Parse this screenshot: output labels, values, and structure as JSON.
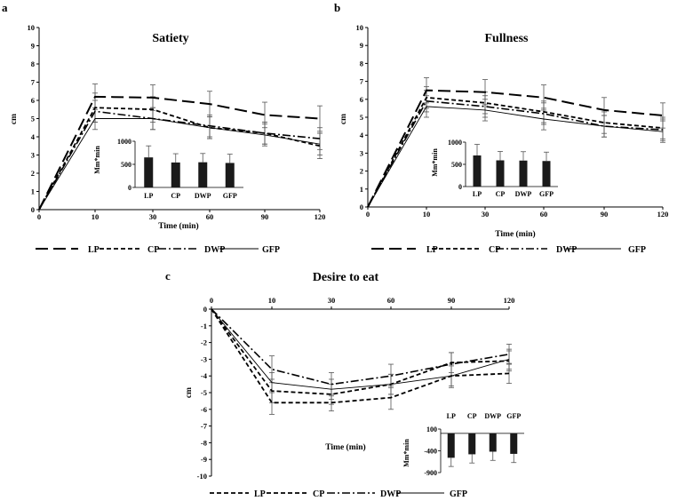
{
  "chart_data": [
    {
      "panel": "a",
      "type": "line",
      "title": "Satiety",
      "xlabel": "Time (min)",
      "ylabel": "cm",
      "x": [
        0,
        10,
        30,
        60,
        90,
        120
      ],
      "x_ticks": [
        0,
        10,
        30,
        60,
        90,
        120
      ],
      "ylim": [
        0,
        10
      ],
      "y_ticks": [
        0,
        1,
        2,
        3,
        4,
        5,
        6,
        7,
        8,
        9,
        10
      ],
      "series": [
        {
          "name": "LP",
          "style": "long-dash",
          "values": [
            0,
            6.2,
            6.15,
            5.8,
            5.2,
            5.0
          ],
          "errors": [
            0,
            0.7,
            0.7,
            0.7,
            0.7,
            0.7
          ]
        },
        {
          "name": "CP",
          "style": "short-dash",
          "values": [
            0,
            5.6,
            5.5,
            4.5,
            4.2,
            3.5
          ],
          "errors": [
            0,
            0.8,
            0.7,
            0.6,
            0.6,
            0.7
          ]
        },
        {
          "name": "DWP",
          "style": "dash-dot",
          "values": [
            0,
            5.4,
            5.0,
            4.6,
            4.2,
            3.9
          ],
          "errors": [
            0,
            0.6,
            0.6,
            0.6,
            0.6,
            0.6
          ]
        },
        {
          "name": "GFP",
          "style": "solid",
          "values": [
            0,
            5.0,
            5.0,
            4.5,
            4.1,
            3.6
          ],
          "errors": [
            0,
            0.6,
            0.6,
            0.6,
            0.6,
            0.6
          ]
        }
      ],
      "inset": {
        "type": "bar",
        "ylabel": "Mm*min",
        "categories": [
          "LP",
          "CP",
          "DWP",
          "GFP"
        ],
        "values": [
          650,
          540,
          545,
          530
        ],
        "errors": [
          250,
          190,
          190,
          190
        ],
        "ylim": [
          0,
          1000
        ],
        "y_ticks": [
          0,
          500,
          1000
        ]
      }
    },
    {
      "panel": "b",
      "type": "line",
      "title": "Fullness",
      "xlabel": "Time (min)",
      "ylabel": "cm",
      "x": [
        0,
        10,
        30,
        60,
        90,
        120
      ],
      "x_ticks": [
        0,
        10,
        30,
        60,
        90,
        120
      ],
      "ylim": [
        0,
        10
      ],
      "y_ticks": [
        0,
        1,
        2,
        3,
        4,
        5,
        6,
        7,
        8,
        9,
        10
      ],
      "series": [
        {
          "name": "LP",
          "style": "long-dash",
          "values": [
            0,
            6.5,
            6.4,
            6.1,
            5.4,
            5.1
          ],
          "errors": [
            0,
            0.7,
            0.7,
            0.7,
            0.7,
            0.7
          ]
        },
        {
          "name": "CP",
          "style": "short-dash",
          "values": [
            0,
            6.1,
            5.8,
            5.3,
            4.7,
            4.4
          ],
          "errors": [
            0,
            0.6,
            0.6,
            0.6,
            0.6,
            0.6
          ]
        },
        {
          "name": "DWP",
          "style": "dash-dot",
          "values": [
            0,
            5.9,
            5.6,
            5.2,
            4.5,
            4.3
          ],
          "errors": [
            0,
            0.6,
            0.6,
            0.6,
            0.6,
            0.6
          ]
        },
        {
          "name": "GFP",
          "style": "solid",
          "values": [
            0,
            5.6,
            5.4,
            4.9,
            4.5,
            4.2
          ],
          "errors": [
            0,
            0.6,
            0.6,
            0.6,
            0.6,
            0.6
          ]
        }
      ],
      "inset": {
        "type": "bar",
        "ylabel": "Mm*min",
        "categories": [
          "LP",
          "CP",
          "DWP",
          "GFP"
        ],
        "values": [
          700,
          590,
          585,
          575
        ],
        "errors": [
          250,
          200,
          200,
          200
        ],
        "ylim": [
          0,
          1000
        ],
        "y_ticks": [
          0,
          500,
          1000
        ]
      }
    },
    {
      "panel": "c",
      "type": "line",
      "title": "Desire to eat",
      "xlabel": "Time (min)",
      "ylabel": "cm",
      "x": [
        0,
        10,
        30,
        60,
        90,
        120
      ],
      "x_ticks": [
        0,
        10,
        30,
        60,
        90,
        120
      ],
      "ylim": [
        -10,
        0
      ],
      "y_ticks": [
        0,
        -1,
        -2,
        -3,
        -4,
        -5,
        -6,
        -7,
        -8,
        -9,
        -10
      ],
      "series": [
        {
          "name": "LP",
          "style": "short-dash",
          "values": [
            0,
            -5.6,
            -5.6,
            -5.3,
            -4.0,
            -3.85
          ],
          "errors": [
            0,
            0.7,
            0.5,
            0.7,
            0.7,
            0.6
          ]
        },
        {
          "name": "CP",
          "style": "short-dash",
          "values": [
            0,
            -4.9,
            -5.1,
            -4.5,
            -3.2,
            -3.1
          ],
          "errors": [
            0,
            0.7,
            0.6,
            0.6,
            0.6,
            0.6
          ]
        },
        {
          "name": "DWP",
          "style": "dash-dot",
          "values": [
            0,
            -3.6,
            -4.5,
            -4.0,
            -3.3,
            -2.7
          ],
          "errors": [
            0,
            0.8,
            0.7,
            0.7,
            0.7,
            0.6
          ]
        },
        {
          "name": "GFP",
          "style": "solid",
          "values": [
            0,
            -4.4,
            -4.8,
            -4.5,
            -4.0,
            -3.0
          ],
          "errors": [
            0,
            0.6,
            0.6,
            0.6,
            0.6,
            0.6
          ]
        }
      ],
      "inset": {
        "type": "bar",
        "ylabel": "Mm*min",
        "categories": [
          "LP",
          "CP",
          "DWP",
          "GFP"
        ],
        "values": [
          -560,
          -480,
          -420,
          -470
        ],
        "errors": [
          200,
          200,
          200,
          200
        ],
        "ylim": [
          -900,
          100
        ],
        "y_ticks": [
          100,
          -400,
          -900
        ]
      }
    }
  ],
  "figure": {
    "panels": [
      {
        "letter": "a",
        "legend": [
          "LP",
          "CP",
          "DWP",
          "GFP"
        ]
      },
      {
        "letter": "b",
        "legend": [
          "LP",
          "CP",
          "DWP",
          "GFP"
        ]
      },
      {
        "letter": "c",
        "legend": [
          "LP",
          "CP",
          "DWP",
          "GFP"
        ]
      }
    ]
  }
}
